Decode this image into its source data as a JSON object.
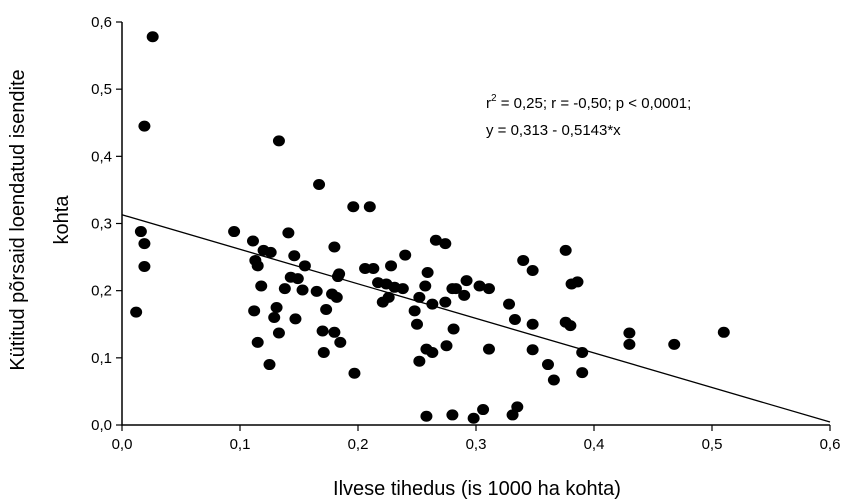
{
  "chart_data": {
    "type": "scatter",
    "title": "",
    "xlabel": "Ilvese tihedus (is 1000 ha kohta)",
    "ylabel_lines": [
      "Kütitud põrsaid loendatud isendite",
      "kohta"
    ],
    "xlim": [
      0.0,
      0.6
    ],
    "ylim": [
      0.0,
      0.6
    ],
    "x_ticks": [
      0.0,
      0.1,
      0.2,
      0.3,
      0.4,
      0.5,
      0.6
    ],
    "y_ticks": [
      0.0,
      0.1,
      0.2,
      0.3,
      0.4,
      0.5,
      0.6
    ],
    "x_tick_labels": [
      "0,0",
      "0,1",
      "0,2",
      "0,3",
      "0,4",
      "0,5",
      "0,6"
    ],
    "y_tick_labels": [
      "0,0",
      "0,1",
      "0,2",
      "0,3",
      "0,4",
      "0,5",
      "0,6"
    ],
    "grid": false,
    "annotation": {
      "r2_label": "r",
      "r2_sup": "2",
      "line1_rest": " = 0,25;  r = -0,50; p < 0,0001;",
      "line2": "y = 0,313 - 0,5143*x"
    },
    "regression": {
      "intercept": 0.313,
      "slope": -0.5143
    },
    "points": [
      [
        0.026,
        0.578
      ],
      [
        0.019,
        0.445
      ],
      [
        0.133,
        0.423
      ],
      [
        0.167,
        0.358
      ],
      [
        0.196,
        0.325
      ],
      [
        0.21,
        0.325
      ],
      [
        0.016,
        0.288
      ],
      [
        0.019,
        0.27
      ],
      [
        0.019,
        0.236
      ],
      [
        0.012,
        0.168
      ],
      [
        0.095,
        0.288
      ],
      [
        0.111,
        0.274
      ],
      [
        0.113,
        0.245
      ],
      [
        0.115,
        0.237
      ],
      [
        0.12,
        0.26
      ],
      [
        0.126,
        0.257
      ],
      [
        0.141,
        0.286
      ],
      [
        0.146,
        0.252
      ],
      [
        0.155,
        0.237
      ],
      [
        0.143,
        0.22
      ],
      [
        0.149,
        0.218
      ],
      [
        0.118,
        0.207
      ],
      [
        0.138,
        0.203
      ],
      [
        0.153,
        0.201
      ],
      [
        0.165,
        0.199
      ],
      [
        0.112,
        0.17
      ],
      [
        0.131,
        0.175
      ],
      [
        0.129,
        0.16
      ],
      [
        0.147,
        0.158
      ],
      [
        0.178,
        0.195
      ],
      [
        0.182,
        0.19
      ],
      [
        0.184,
        0.225
      ],
      [
        0.183,
        0.221
      ],
      [
        0.18,
        0.265
      ],
      [
        0.206,
        0.233
      ],
      [
        0.213,
        0.233
      ],
      [
        0.217,
        0.212
      ],
      [
        0.224,
        0.21
      ],
      [
        0.228,
        0.237
      ],
      [
        0.231,
        0.205
      ],
      [
        0.238,
        0.203
      ],
      [
        0.24,
        0.253
      ],
      [
        0.221,
        0.183
      ],
      [
        0.226,
        0.19
      ],
      [
        0.173,
        0.172
      ],
      [
        0.18,
        0.138
      ],
      [
        0.17,
        0.14
      ],
      [
        0.185,
        0.123
      ],
      [
        0.171,
        0.108
      ],
      [
        0.115,
        0.123
      ],
      [
        0.133,
        0.137
      ],
      [
        0.125,
        0.09
      ],
      [
        0.197,
        0.077
      ],
      [
        0.248,
        0.17
      ],
      [
        0.252,
        0.19
      ],
      [
        0.25,
        0.15
      ],
      [
        0.257,
        0.207
      ],
      [
        0.259,
        0.227
      ],
      [
        0.263,
        0.18
      ],
      [
        0.266,
        0.275
      ],
      [
        0.274,
        0.27
      ],
      [
        0.274,
        0.183
      ],
      [
        0.28,
        0.203
      ],
      [
        0.283,
        0.203
      ],
      [
        0.29,
        0.193
      ],
      [
        0.292,
        0.215
      ],
      [
        0.303,
        0.207
      ],
      [
        0.311,
        0.203
      ],
      [
        0.258,
        0.113
      ],
      [
        0.263,
        0.108
      ],
      [
        0.252,
        0.095
      ],
      [
        0.275,
        0.118
      ],
      [
        0.281,
        0.143
      ],
      [
        0.328,
        0.18
      ],
      [
        0.333,
        0.157
      ],
      [
        0.311,
        0.113
      ],
      [
        0.34,
        0.245
      ],
      [
        0.348,
        0.23
      ],
      [
        0.348,
        0.15
      ],
      [
        0.348,
        0.112
      ],
      [
        0.376,
        0.26
      ],
      [
        0.376,
        0.153
      ],
      [
        0.381,
        0.21
      ],
      [
        0.386,
        0.213
      ],
      [
        0.38,
        0.148
      ],
      [
        0.361,
        0.09
      ],
      [
        0.366,
        0.067
      ],
      [
        0.39,
        0.108
      ],
      [
        0.39,
        0.078
      ],
      [
        0.43,
        0.137
      ],
      [
        0.43,
        0.12
      ],
      [
        0.468,
        0.12
      ],
      [
        0.51,
        0.138
      ],
      [
        0.258,
        0.013
      ],
      [
        0.28,
        0.015
      ],
      [
        0.298,
        0.01
      ],
      [
        0.306,
        0.023
      ],
      [
        0.331,
        0.015
      ],
      [
        0.335,
        0.027
      ]
    ]
  }
}
